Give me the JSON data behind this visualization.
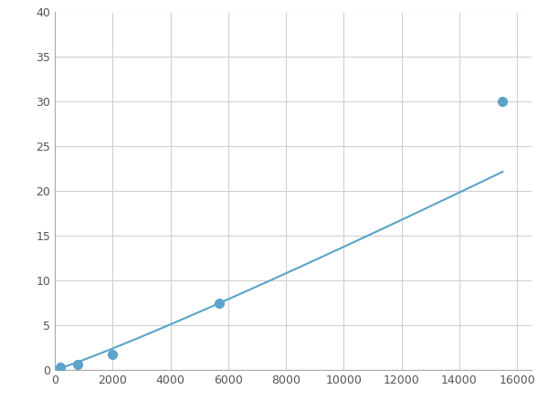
{
  "x_points": [
    200,
    800,
    2000,
    5700,
    15500
  ],
  "y_points": [
    0.3,
    0.6,
    1.7,
    7.5,
    30
  ],
  "line_color": "#5BA3C9",
  "marker_color": "#5BA3C9",
  "marker_size": 7,
  "line_width": 1.5,
  "xlim": [
    0,
    16500
  ],
  "ylim": [
    0,
    40
  ],
  "xticks": [
    0,
    2000,
    4000,
    6000,
    8000,
    10000,
    12000,
    14000,
    16000
  ],
  "yticks": [
    0,
    5,
    10,
    15,
    20,
    25,
    30,
    35,
    40
  ],
  "grid_color": "#d0d0d0",
  "background_color": "#ffffff",
  "fig_width": 6.0,
  "fig_height": 4.5,
  "dpi": 100
}
